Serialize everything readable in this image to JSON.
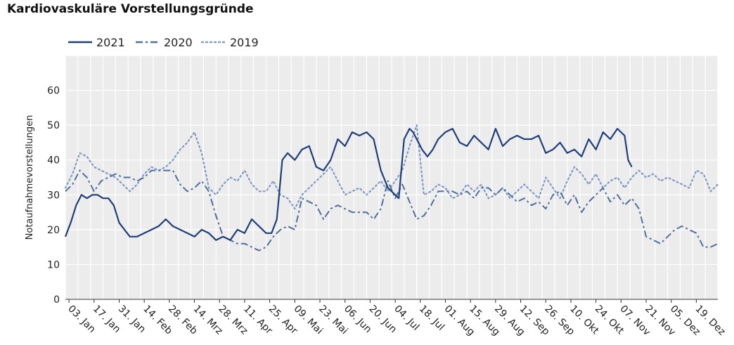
{
  "chart_data": {
    "type": "line",
    "title": "Kardiovaskuläre Vorstellungsgründe",
    "ylabel": "Notaufnahmevorstellungen",
    "xlabel": "",
    "ylim": [
      0,
      70
    ],
    "yticks": [
      0,
      10,
      20,
      30,
      40,
      50,
      60
    ],
    "grid": true,
    "legend_position": "top-left",
    "x_tick_labels": [
      "03. Jan",
      "17. Jan",
      "31. Jan",
      "14. Feb",
      "28. Feb",
      "14. Mrz",
      "28. Mrz",
      "11. Apr",
      "25. Apr",
      "09. Mai",
      "23. Mai",
      "06. Jun",
      "20. Jun",
      "04. Jul",
      "18. Jul",
      "01. Aug",
      "15. Aug",
      "29. Aug",
      "12. Sep",
      "26. Sep",
      "10. Okt",
      "24. Okt",
      "07. Nov",
      "21. Nov",
      "05. Dez",
      "19. Dez"
    ],
    "x_day_range": [
      1,
      365
    ],
    "x_tick_days": [
      3,
      17,
      31,
      45,
      59,
      73,
      87,
      101,
      115,
      129,
      143,
      157,
      171,
      185,
      199,
      213,
      227,
      241,
      255,
      269,
      283,
      297,
      311,
      325,
      339,
      353
    ],
    "series": [
      {
        "name": "2021",
        "color": "#1f3f7a",
        "style": "solid",
        "days": [
          1,
          4,
          7,
          10,
          13,
          16,
          19,
          22,
          25,
          28,
          31,
          34,
          37,
          41,
          45,
          49,
          53,
          57,
          61,
          65,
          69,
          73,
          77,
          81,
          85,
          89,
          93,
          97,
          101,
          105,
          109,
          113,
          116,
          119,
          122,
          125,
          129,
          133,
          137,
          141,
          145,
          149,
          153,
          157,
          161,
          165,
          169,
          173,
          177,
          181,
          185,
          187,
          190,
          193,
          195,
          197,
          200,
          203,
          206,
          209,
          213,
          217,
          221,
          225,
          229,
          233,
          237,
          241,
          245,
          249,
          253,
          257,
          261,
          265,
          269,
          273,
          277,
          281,
          285,
          289,
          293,
          297,
          301,
          305,
          309,
          311,
          313,
          315,
          317
        ],
        "values": [
          18,
          22,
          27,
          30,
          29,
          30,
          30,
          29,
          29,
          27,
          22,
          20,
          18,
          18,
          19,
          20,
          21,
          23,
          21,
          20,
          19,
          18,
          20,
          19,
          17,
          18,
          17,
          20,
          19,
          23,
          21,
          19,
          19,
          23,
          40,
          42,
          40,
          43,
          44,
          38,
          37,
          40,
          46,
          44,
          48,
          47,
          48,
          46,
          37,
          32,
          30,
          29,
          46,
          49,
          48,
          46,
          43,
          41,
          43,
          46,
          48,
          49,
          45,
          44,
          47,
          45,
          43,
          49,
          44,
          46,
          47,
          46,
          46,
          47,
          42,
          43,
          45,
          42,
          43,
          41,
          46,
          43,
          48,
          46,
          49,
          48,
          47,
          40,
          38
        ]
      },
      {
        "name": "2020",
        "color": "#4f6f9f",
        "style": "dashdot",
        "days": [
          1,
          5,
          9,
          13,
          17,
          21,
          25,
          29,
          33,
          37,
          41,
          45,
          49,
          53,
          57,
          61,
          65,
          69,
          73,
          77,
          81,
          85,
          89,
          93,
          97,
          101,
          105,
          109,
          113,
          117,
          121,
          125,
          129,
          133,
          137,
          141,
          145,
          149,
          153,
          157,
          161,
          165,
          169,
          173,
          177,
          181,
          185,
          189,
          193,
          197,
          201,
          205,
          209,
          213,
          217,
          221,
          225,
          229,
          233,
          237,
          241,
          245,
          249,
          253,
          257,
          261,
          265,
          269,
          273,
          277,
          281,
          285,
          289,
          293,
          297,
          301,
          305,
          309,
          313,
          317,
          321,
          325,
          329,
          333,
          337,
          341,
          345,
          349,
          353,
          357,
          361,
          365
        ],
        "values": [
          31,
          33,
          37,
          35,
          31,
          34,
          35,
          36,
          35,
          35,
          34,
          35,
          37,
          37,
          37,
          37,
          33,
          31,
          32,
          34,
          31,
          24,
          18,
          17,
          16,
          16,
          15,
          14,
          15,
          18,
          20,
          21,
          20,
          29,
          28,
          27,
          23,
          26,
          27,
          26,
          25,
          25,
          25,
          23,
          26,
          34,
          29,
          33,
          28,
          23,
          24,
          27,
          31,
          31,
          31,
          30,
          31,
          29,
          32,
          32,
          30,
          32,
          30,
          28,
          29,
          27,
          28,
          26,
          30,
          31,
          27,
          30,
          25,
          28,
          30,
          32,
          28,
          30,
          27,
          29,
          26,
          18,
          17,
          16,
          18,
          20,
          21,
          20,
          19,
          15,
          15,
          16
        ]
      },
      {
        "name": "2019",
        "color": "#7f9ac7",
        "style": "dotted",
        "days": [
          1,
          5,
          9,
          13,
          17,
          21,
          25,
          29,
          33,
          37,
          41,
          45,
          49,
          53,
          57,
          61,
          65,
          69,
          73,
          77,
          81,
          85,
          89,
          93,
          97,
          101,
          105,
          109,
          113,
          117,
          121,
          125,
          129,
          133,
          137,
          141,
          145,
          149,
          153,
          157,
          161,
          165,
          169,
          173,
          177,
          181,
          185,
          189,
          193,
          197,
          201,
          205,
          209,
          213,
          217,
          221,
          225,
          229,
          233,
          237,
          241,
          245,
          249,
          253,
          257,
          261,
          265,
          269,
          273,
          277,
          281,
          285,
          289,
          293,
          297,
          301,
          305,
          309,
          313,
          317,
          321,
          325,
          329,
          333,
          337,
          341,
          345,
          349,
          353,
          357,
          361,
          365
        ],
        "values": [
          32,
          36,
          42,
          41,
          38,
          37,
          36,
          35,
          33,
          31,
          33,
          36,
          38,
          37,
          38,
          40,
          43,
          45,
          48,
          42,
          32,
          30,
          33,
          35,
          34,
          37,
          33,
          31,
          31,
          34,
          30,
          29,
          26,
          30,
          32,
          34,
          36,
          38,
          34,
          30,
          31,
          32,
          30,
          32,
          34,
          31,
          34,
          37,
          44,
          50,
          30,
          31,
          33,
          32,
          29,
          30,
          33,
          31,
          33,
          29,
          30,
          32,
          29,
          31,
          33,
          31,
          29,
          35,
          32,
          29,
          34,
          38,
          36,
          33,
          36,
          32,
          34,
          35,
          32,
          35,
          37,
          35,
          36,
          34,
          35,
          34,
          33,
          32,
          37,
          36,
          31,
          33
        ]
      }
    ]
  }
}
